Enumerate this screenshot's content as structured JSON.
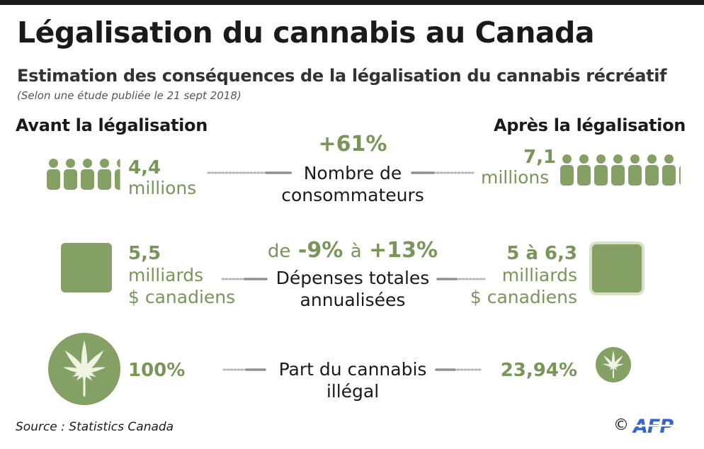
{
  "header": {
    "title": "Légalisation du cannabis au Canada",
    "subtitle": "Estimation des conséquences de la légalisation du cannabis récréatif",
    "note": "(Selon une étude publiée le 21 sept 2018)"
  },
  "columns": {
    "before": "Avant la légalisation",
    "after": "Après la légalisation"
  },
  "rows": {
    "consumers": {
      "before_value": "4,4",
      "before_unit": "millions",
      "change": "+61%",
      "label_line1": "Nombre de",
      "label_line2": "consommateurs",
      "after_value": "7,1",
      "after_unit": "millions"
    },
    "spending": {
      "before_value": "5,5",
      "before_unit_line1": "milliards",
      "before_unit_line2": "$ canadiens",
      "change_pre1": "de",
      "change_low": "-9%",
      "change_pre2": "à",
      "change_high": "+13%",
      "label_line1": "Dépenses totales",
      "label_line2": "annualisées",
      "after_value": "5 à 6,3",
      "after_unit_line1": "milliards",
      "after_unit_line2": "$ canadiens"
    },
    "illegal": {
      "before_value": "100%",
      "label_line1": "Part du cannabis",
      "label_line2": "illégal",
      "after_value": "23,94%"
    }
  },
  "footer": {
    "source": "Source :  Statistics Canada",
    "copyright": "©",
    "agency": "AFP"
  },
  "colors": {
    "accent": "#79955a",
    "icon_fill": "#84a064",
    "leaf": "#eef3e2"
  },
  "icons": [
    "person-icon",
    "spending-square-icon",
    "cannabis-leaf-icon",
    "afp-logo"
  ]
}
